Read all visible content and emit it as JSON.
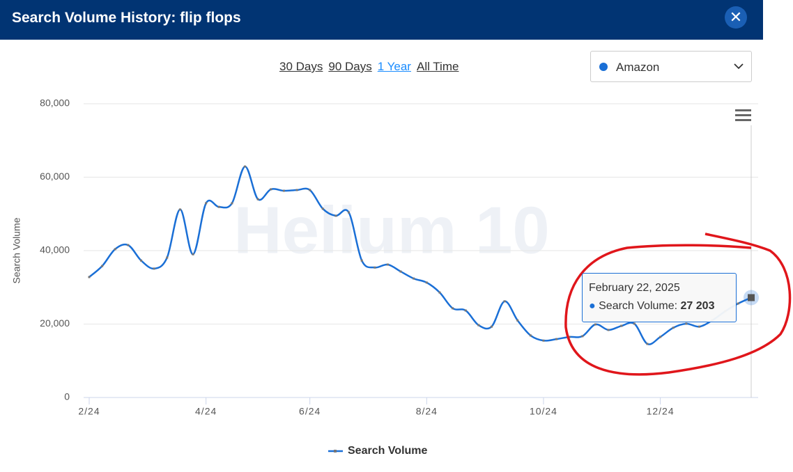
{
  "header": {
    "title": "Search Volume History: flip flops"
  },
  "range_options": [
    "30 Days",
    "90 Days",
    "1 Year",
    "All Time"
  ],
  "selected_range": 2,
  "marketplace": "Amazon",
  "watermark": "Helium 10",
  "tooltip": {
    "title": "February 22, 2025",
    "series_label": "Search Volume:",
    "value_label": "27 203"
  },
  "chart_data": {
    "type": "line",
    "y_label": "Search Volume",
    "categories": [
      "2/24",
      null,
      null,
      null,
      null,
      null,
      null,
      null,
      null,
      "4/24",
      null,
      null,
      null,
      null,
      null,
      null,
      null,
      "6/24",
      null,
      null,
      null,
      null,
      null,
      null,
      null,
      null,
      "8/24",
      null,
      null,
      null,
      null,
      null,
      null,
      null,
      null,
      "10/24",
      null,
      null,
      null,
      null,
      null,
      null,
      null,
      null,
      "12/24",
      null,
      null,
      null,
      null,
      null,
      null,
      null
    ],
    "series": [
      {
        "name": "Search Volume",
        "color": "#1a6fd6",
        "values": [
          32800,
          35800,
          40400,
          41500,
          37300,
          35100,
          38100,
          51200,
          39000,
          52900,
          51900,
          52900,
          62900,
          54000,
          56700,
          56300,
          56500,
          56500,
          51400,
          49500,
          50400,
          37300,
          35400,
          36200,
          34300,
          32400,
          31300,
          28600,
          24300,
          23700,
          19700,
          19300,
          26200,
          21000,
          16900,
          15500,
          15900,
          16500,
          16700,
          19900,
          18400,
          19500,
          20100,
          14600,
          16500,
          19000,
          20100,
          19300,
          21000,
          23500,
          25600,
          27203
        ]
      }
    ],
    "ylim": [
      0,
      80000
    ],
    "yticks": [
      0,
      {
        "value": 20000,
        "label": "20,000"
      },
      {
        "value": 40000,
        "label": "40,000"
      },
      {
        "value": 60000,
        "label": "60,000"
      },
      {
        "value": 80000,
        "label": "80,000"
      }
    ],
    "grid": true
  }
}
